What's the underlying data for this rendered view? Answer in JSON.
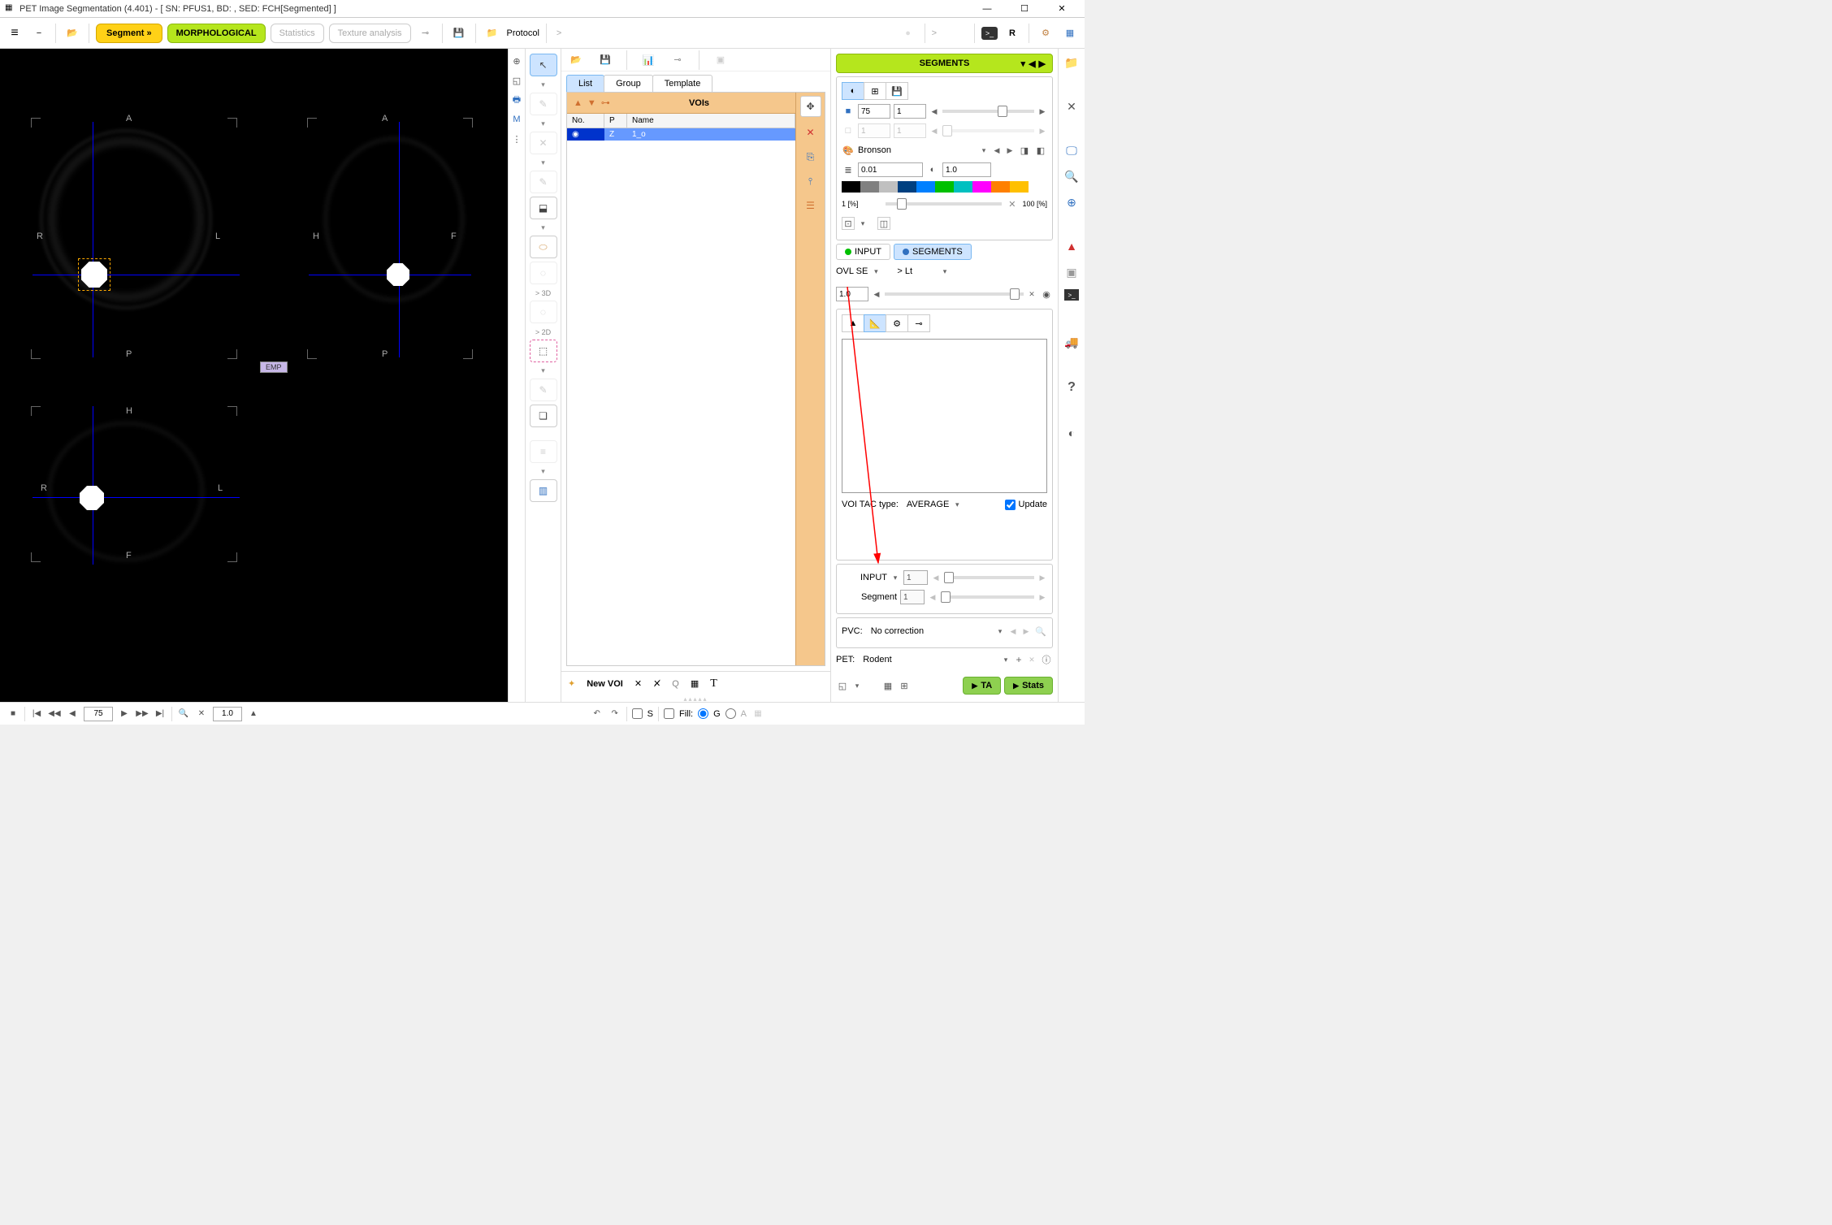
{
  "window": {
    "title": "PET Image Segmentation (4.401) - [ SN: PFUS1, BD: , SED: FCH[Segmented] ]"
  },
  "toolbar": {
    "segment": "Segment »",
    "morphological": "MORPHOLOGICAL",
    "statistics": "Statistics",
    "texture_analysis": "Texture analysis",
    "protocol": "Protocol",
    "r_label": "R",
    "gt": ">"
  },
  "viewer": {
    "coronal": {
      "top": "A",
      "bottom": "P",
      "left": "R",
      "right": "L"
    },
    "sagittal": {
      "top": "A",
      "bottom": "P",
      "left": "H",
      "right": "F"
    },
    "axial": {
      "top": "H",
      "bottom": "F",
      "left": "R",
      "right": "L"
    },
    "emp_badge": "EMP"
  },
  "wide_tools": {
    "label_3d": "> 3D",
    "label_2d": "> 2D"
  },
  "voi_panel": {
    "tabs": {
      "list": "List",
      "group": "Group",
      "template": "Template"
    },
    "header": "VOIs",
    "columns": {
      "no": "No.",
      "p": "P",
      "name": "Name"
    },
    "rows": [
      {
        "icon": "◉",
        "p": "Z",
        "name": "1_o"
      }
    ],
    "new_voi": "New VOI"
  },
  "right": {
    "segments_header": "SEGMENTS",
    "lut": {
      "val1": "75",
      "val2": "1",
      "name": "Bronson",
      "min": "0.01",
      "max": "1.0",
      "range_lo": "1 [%]",
      "range_hi": "100 [%]",
      "colors": [
        "#000000",
        "#808080",
        "#c0c0c0",
        "#004080",
        "#0080ff",
        "#00c000",
        "#00c0c0",
        "#ff00ff",
        "#ff8000",
        "#ffc000",
        "#ffffff"
      ]
    },
    "ovl_se": "OVL SE",
    "lt": "> Lt",
    "ovl_val": "1.0",
    "input_label": "INPUT",
    "segments_label": "SEGMENTS",
    "voi_tac_type": "VOI TAC type:",
    "voi_tac_value": "AVERAGE",
    "update": "Update",
    "input_frame_label": "INPUT",
    "segment_frame_label": "Segment",
    "pvc_label": "PVC:",
    "pvc_value": "No correction",
    "pet_label": "PET:",
    "pet_value": "Rodent",
    "ta_btn": "TA",
    "stats_btn": "Stats"
  },
  "bottom": {
    "frame": "75",
    "zoom": "1.0",
    "s_label": "S",
    "fill_label": "Fill:",
    "g_label": "G",
    "a_label": "A"
  },
  "vtool_m": "M"
}
